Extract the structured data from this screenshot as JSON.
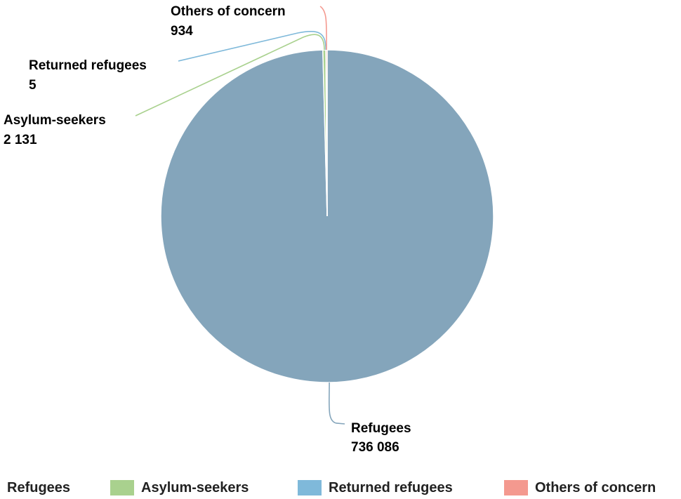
{
  "chart_data": {
    "type": "pie",
    "title": "",
    "legend_position": "bottom",
    "categories": [
      "Refugees",
      "Asylum-seekers",
      "Returned refugees",
      "Others of concern"
    ],
    "values": [
      736086,
      2131,
      5,
      934
    ],
    "value_labels": [
      "736 086",
      "2 131",
      "5",
      "934"
    ],
    "colors": [
      "#84a5bb",
      "#a9d18e",
      "#7fb9da",
      "#f4998f"
    ]
  },
  "legend": {
    "items": [
      {
        "label": "Refugees",
        "color": "#84a5bb"
      },
      {
        "label": "Asylum-seekers",
        "color": "#a9d18e"
      },
      {
        "label": "Returned refugees",
        "color": "#7fb9da"
      },
      {
        "label": "Others of concern",
        "color": "#f4998f"
      }
    ]
  }
}
